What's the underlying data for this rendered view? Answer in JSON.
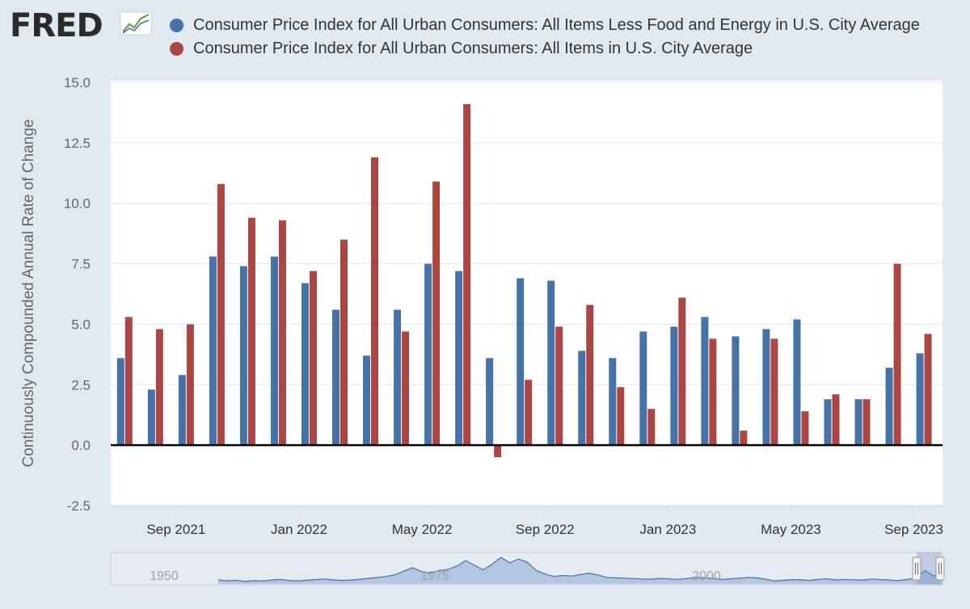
{
  "logo": {
    "text": "FRED",
    "icon": "fred-line-graph-icon"
  },
  "chart_data": {
    "type": "bar",
    "ylabel": "Continuously Compounded Annual Rate of Change",
    "ylim": [
      -2.5,
      15.0
    ],
    "yticks": [
      -2.5,
      0.0,
      2.5,
      5.0,
      7.5,
      10.0,
      12.5,
      15.0
    ],
    "ytick_labels": [
      "-2.5",
      "0.0",
      "2.5",
      "5.0",
      "7.5",
      "10.0",
      "12.5",
      "15.0"
    ],
    "categories": [
      "Jul 2021",
      "Aug 2021",
      "Sep 2021",
      "Oct 2021",
      "Nov 2021",
      "Dec 2021",
      "Jan 2022",
      "Feb 2022",
      "Mar 2022",
      "Apr 2022",
      "May 2022",
      "Jun 2022",
      "Jul 2022",
      "Aug 2022",
      "Sep 2022",
      "Oct 2022",
      "Nov 2022",
      "Dec 2022",
      "Jan 2023",
      "Feb 2023",
      "Mar 2023",
      "Apr 2023",
      "May 2023",
      "Jun 2023",
      "Jul 2023",
      "Aug 2023",
      "Sep 2023"
    ],
    "xtick_labels": [
      {
        "index": 2,
        "label": "Sep 2021"
      },
      {
        "index": 6,
        "label": "Jan 2022"
      },
      {
        "index": 10,
        "label": "May 2022"
      },
      {
        "index": 14,
        "label": "Sep 2022"
      },
      {
        "index": 18,
        "label": "Jan 2023"
      },
      {
        "index": 22,
        "label": "May 2023"
      },
      {
        "index": 26,
        "label": "Sep 2023"
      }
    ],
    "series": [
      {
        "name": "Consumer Price Index for All Urban Consumers: All Items Less Food and Energy in U.S. City Average",
        "color": "#4572a7",
        "values": [
          3.6,
          2.3,
          2.9,
          7.8,
          7.4,
          7.8,
          6.7,
          5.6,
          3.7,
          5.6,
          7.5,
          7.2,
          3.6,
          6.9,
          6.8,
          3.9,
          3.6,
          4.7,
          4.9,
          5.3,
          4.5,
          4.8,
          5.2,
          1.9,
          1.9,
          3.2,
          3.8
        ]
      },
      {
        "name": "Consumer Price Index for All Urban Consumers: All Items in U.S. City Average",
        "color": "#aa4643",
        "values": [
          5.3,
          4.8,
          5.0,
          10.8,
          9.4,
          9.3,
          7.2,
          8.5,
          11.9,
          4.7,
          10.9,
          14.1,
          -0.5,
          2.7,
          4.9,
          5.8,
          2.4,
          1.5,
          6.1,
          4.4,
          0.6,
          4.4,
          1.4,
          2.1,
          1.9,
          7.5,
          4.6
        ]
      }
    ]
  },
  "navigator": {
    "year_labels": [
      "1950",
      "1975",
      "2000"
    ],
    "series": [
      2.0,
      1.5,
      1.8,
      1.2,
      1.6,
      1.4,
      1.9,
      2.2,
      1.7,
      1.5,
      1.8,
      2.1,
      2.4,
      2.0,
      1.7,
      1.9,
      2.3,
      2.7,
      3.1,
      3.6,
      4.4,
      6.2,
      7.8,
      6.0,
      5.2,
      6.5,
      7.0,
      8.6,
      11.2,
      9.0,
      6.8,
      9.5,
      12.8,
      10.2,
      12.0,
      10.4,
      6.5,
      4.8,
      3.6,
      4.1,
      3.8,
      4.5,
      5.2,
      4.3,
      3.1,
      2.9,
      2.8,
      2.6,
      2.4,
      2.3,
      2.7,
      2.5,
      2.2,
      2.6,
      3.1,
      3.0,
      2.7,
      2.2,
      2.5,
      2.8,
      3.1,
      2.9,
      2.3,
      1.4,
      1.8,
      2.1,
      2.0,
      1.7,
      2.3,
      2.5,
      1.9,
      2.2,
      2.0,
      1.9,
      2.4,
      2.1,
      1.9,
      1.6,
      2.2,
      2.8,
      6.5,
      3.8,
      5.6
    ]
  }
}
